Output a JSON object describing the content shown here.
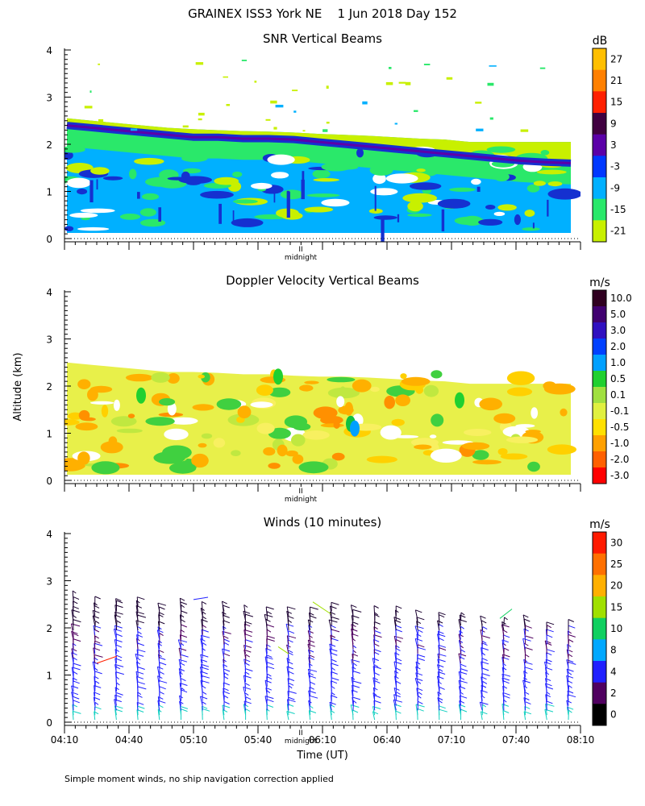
{
  "header": {
    "title": "GRAINEX ISS3 York NE    1 Jun 2018 Day 152",
    "ylabel": "Altitude (km)",
    "xlabel": "Time (UT)",
    "footnote": "Simple moment winds, no ship navigation correction applied"
  },
  "chart_data": [
    {
      "type": "heatmap",
      "title": "SNR Vertical Beams",
      "colorbar_unit": "dB",
      "colorbar_labels": [
        "27",
        "21",
        "15",
        "9",
        "3",
        "-3",
        "-9",
        "-15",
        "-21"
      ],
      "colorbar_colors": [
        "#ffbf00",
        "#ff8000",
        "#ff2000",
        "#400040",
        "#5b00a8",
        "#0038ff",
        "#00b0ff",
        "#2ae86a",
        "#c8f000"
      ],
      "ylim": [
        0,
        4
      ],
      "y_ticks": [
        "0",
        "1",
        "2",
        "3",
        "4"
      ],
      "midnight_label": "midnight",
      "data_top_km": [
        2.55,
        2.5,
        2.45,
        2.4,
        2.35,
        2.32,
        2.3,
        2.28,
        2.27,
        2.25,
        2.22,
        2.2,
        2.18,
        2.15,
        2.12,
        2.1,
        2.05,
        2.05,
        2.05,
        2.05,
        2.05
      ],
      "bright_band_km": [
        2.4,
        2.35,
        2.3,
        2.25,
        2.2,
        2.15,
        2.15,
        2.12,
        2.12,
        2.1,
        2.05,
        2.0,
        1.95,
        1.9,
        1.85,
        1.8,
        1.75,
        1.7,
        1.65,
        1.62,
        1.6
      ]
    },
    {
      "type": "heatmap",
      "title": "Doppler Velocity Vertical Beams",
      "colorbar_unit": "m/s",
      "colorbar_labels": [
        "10.0",
        "5.0",
        "3.0",
        "2.0",
        "1.0",
        "0.5",
        "0.1",
        "-0.1",
        "-0.5",
        "-1.0",
        "-2.0",
        "-3.0"
      ],
      "colorbar_colors": [
        "#300020",
        "#400070",
        "#3010c0",
        "#0040ff",
        "#00a0ff",
        "#20d030",
        "#a0e040",
        "#e0f040",
        "#ffe000",
        "#ffa000",
        "#ff6000",
        "#ff0000"
      ],
      "ylim": [
        0,
        4
      ],
      "y_ticks": [
        "0",
        "1",
        "2",
        "3",
        "4"
      ],
      "midnight_label": "midnight",
      "data_top_km": [
        2.5,
        2.45,
        2.4,
        2.35,
        2.3,
        2.3,
        2.28,
        2.25,
        2.25,
        2.22,
        2.2,
        2.2,
        2.18,
        2.15,
        2.12,
        2.1,
        2.05,
        2.05,
        2.05,
        2.05,
        2.05
      ]
    },
    {
      "type": "scatter",
      "title": "Winds (10 minutes)",
      "colorbar_unit": "m/s",
      "colorbar_labels": [
        "30",
        "25",
        "20",
        "15",
        "10",
        "8",
        "4",
        "2",
        "0"
      ],
      "colorbar_colors": [
        "#ff1a00",
        "#ff7000",
        "#ffb000",
        "#a0e000",
        "#10d060",
        "#00a8ff",
        "#2020ff",
        "#500060",
        "#000000"
      ],
      "ylim": [
        0,
        4
      ],
      "y_ticks": [
        "0",
        "1",
        "2",
        "3",
        "4"
      ],
      "x_ticks": [
        "04:10",
        "04:40",
        "05:10",
        "05:40",
        "06:10",
        "06:40",
        "07:10",
        "07:40",
        "08:10"
      ],
      "midnight_label": "midnight",
      "profile_count": 24,
      "profile_top_km": [
        2.6,
        2.55,
        2.55,
        2.5,
        2.45,
        2.55,
        2.45,
        2.4,
        2.35,
        2.3,
        2.3,
        2.3,
        2.4,
        2.3,
        2.35,
        2.3,
        2.25,
        2.25,
        2.2,
        2.15,
        2.15,
        2.1,
        2.05,
        2.0
      ]
    }
  ]
}
